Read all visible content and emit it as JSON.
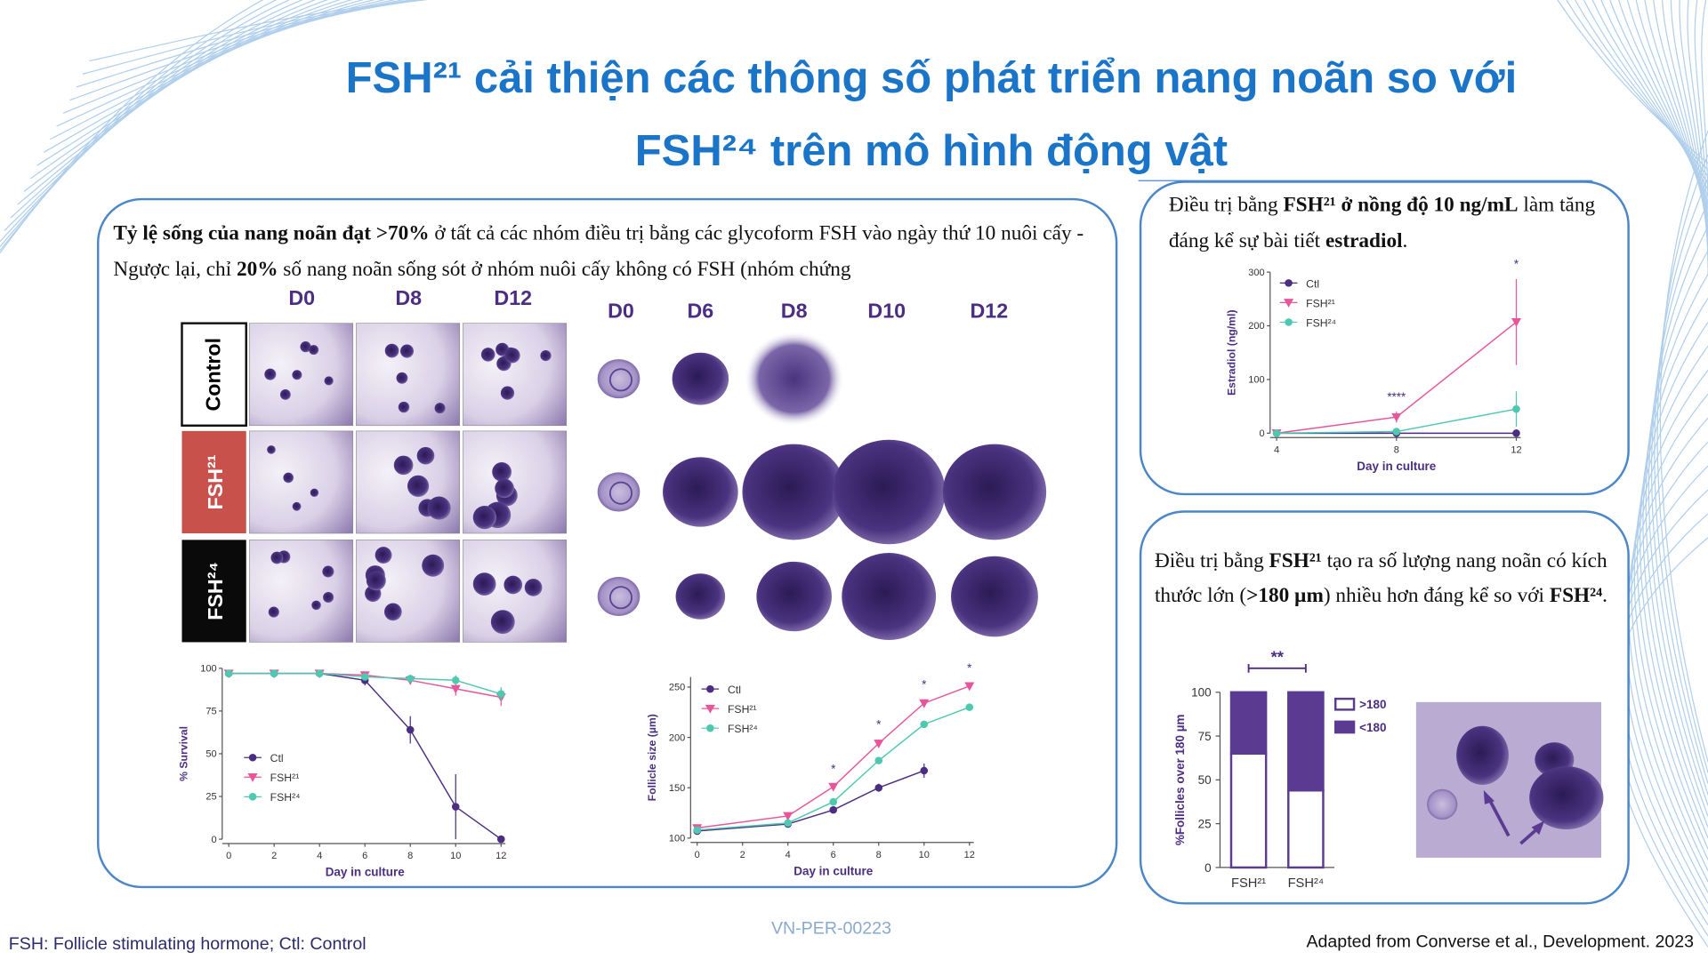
{
  "title": {
    "line1": "FSH²¹ cải thiện các thông số phát triển nang noãn so với",
    "line2": "FSH²⁴ trên mô hình động vật"
  },
  "left_panel": {
    "text": [
      "Tỷ lệ sống của nang noãn đạt >70%",
      " ở tất cả các nhóm điều trị bằng các glycoform FSH vào ngày thứ 10 nuôi cấy - Ngược lại, chỉ ",
      "20%",
      " số nang noãn sống sót ở nhóm nuôi cấy không có FSH (nhóm chứng"
    ],
    "grid_columns": [
      "D0",
      "D8",
      "D12"
    ],
    "grid_rows": [
      "Control",
      "FSH²¹",
      "FSH²⁴"
    ],
    "growth_columns": [
      "D0",
      "D6",
      "D8",
      "D10",
      "D12"
    ]
  },
  "right_top": {
    "text": [
      "Điều trị bằng ",
      "FSH²¹ ở nồng độ 10 ng/mL",
      " làm tăng đáng kể sự bài tiết ",
      "estradiol",
      "."
    ]
  },
  "right_bottom": {
    "text": [
      "Điều trị bằng ",
      "FSH²¹",
      " tạo ra số lượng nang noãn có kích thước lớn (",
      ">180 µm",
      ") nhiều hơn đáng kể so với ",
      "FSH²⁴",
      "."
    ]
  },
  "footer": {
    "note": "FSH: Follicle stimulating hormone; Ctl: Control",
    "code": "VN-PER-00223",
    "source": "Adapted from Converse et al., Development. 2023"
  },
  "chart_data": [
    {
      "type": "line",
      "ylabel": "% Survival",
      "xlabel": "Day in culture",
      "x": [
        0,
        2,
        4,
        6,
        8,
        10,
        12
      ],
      "xlim": [
        0,
        12
      ],
      "xticks": [
        0,
        2,
        4,
        6,
        8,
        10,
        12
      ],
      "ylim": [
        0,
        100
      ],
      "yticks": [
        0,
        25,
        50,
        75,
        100
      ],
      "series": [
        {
          "name": "Ctl",
          "color": "#4b2e83",
          "marker": "circle",
          "values": [
            97,
            97,
            97,
            93,
            64,
            19,
            0
          ],
          "errors": [
            null,
            null,
            null,
            3,
            8,
            19,
            null
          ]
        },
        {
          "name": "FSH²¹",
          "color": "#e8559a",
          "marker": "triangle-down",
          "values": [
            97,
            97,
            97,
            96,
            93,
            88,
            83
          ],
          "errors": [
            null,
            null,
            null,
            2,
            2,
            4,
            5
          ]
        },
        {
          "name": "FSH²⁴",
          "color": "#4ec9b0",
          "marker": "circle",
          "values": [
            97,
            97,
            97,
            95,
            94,
            93,
            85
          ],
          "errors": [
            null,
            null,
            null,
            2,
            2,
            3,
            4
          ]
        }
      ]
    },
    {
      "type": "line",
      "ylabel": "Follicle size (µm)",
      "xlabel": "Day in culture",
      "x": [
        0,
        4,
        6,
        8,
        10,
        12
      ],
      "xlim": [
        0,
        12
      ],
      "xticks": [
        0,
        2,
        4,
        6,
        8,
        10,
        12
      ],
      "ylim": [
        100,
        260
      ],
      "yticks": [
        100,
        150,
        200,
        250
      ],
      "series": [
        {
          "name": "Ctl",
          "color": "#4b2e83",
          "marker": "circle",
          "values": [
            107,
            114,
            128,
            150,
            167,
            null
          ],
          "errors": [
            null,
            null,
            2,
            4,
            7,
            null
          ]
        },
        {
          "name": "FSH²¹",
          "color": "#e8559a",
          "marker": "triangle-down",
          "values": [
            110,
            122,
            151,
            194,
            234,
            251
          ],
          "errors": [
            null,
            null,
            3,
            4,
            4,
            3
          ]
        },
        {
          "name": "FSH²⁴",
          "color": "#4ec9b0",
          "marker": "circle",
          "values": [
            108,
            115,
            136,
            177,
            213,
            230
          ],
          "errors": [
            null,
            null,
            3,
            3,
            3,
            2
          ]
        }
      ],
      "annotations": [
        {
          "x": 6,
          "text": "*"
        },
        {
          "x": 8,
          "text": "*"
        },
        {
          "x": 10,
          "text": "*"
        },
        {
          "x": 12,
          "text": "*"
        }
      ]
    },
    {
      "type": "line",
      "ylabel": "Estradiol (ng/ml)",
      "xlabel": "Day in culture",
      "x": [
        4,
        8,
        12
      ],
      "xlim": [
        4,
        12
      ],
      "xticks": [
        4,
        8,
        12
      ],
      "ylim": [
        0,
        300
      ],
      "yticks": [
        0,
        100,
        200,
        300
      ],
      "series": [
        {
          "name": "Ctl",
          "color": "#4b2e83",
          "marker": "circle",
          "values": [
            0,
            0,
            0
          ],
          "errors": [
            null,
            null,
            null
          ]
        },
        {
          "name": "FSH²¹",
          "color": "#e8559a",
          "marker": "triangle-down",
          "values": [
            0,
            30,
            207
          ],
          "errors": [
            null,
            10,
            80
          ]
        },
        {
          "name": "FSH²⁴",
          "color": "#4ec9b0",
          "marker": "circle",
          "values": [
            0,
            3,
            45
          ],
          "errors": [
            null,
            3,
            33
          ]
        }
      ],
      "annotations": [
        {
          "x": 8,
          "text": "****"
        },
        {
          "x": 12,
          "text": "*"
        }
      ]
    },
    {
      "type": "stacked_bar",
      "ylabel": "%Follicles over 180 µm",
      "categories": [
        "FSH²¹",
        "FSH²⁴"
      ],
      "ylim": [
        0,
        100
      ],
      "yticks": [
        0,
        25,
        50,
        75,
        100
      ],
      "series": [
        {
          "name": ">180",
          "color": "#ffffff",
          "values": [
            65,
            44
          ]
        },
        {
          "name": "<180",
          "color": "#5b3b92",
          "values": [
            35,
            56
          ]
        }
      ],
      "annotation": "**"
    }
  ]
}
